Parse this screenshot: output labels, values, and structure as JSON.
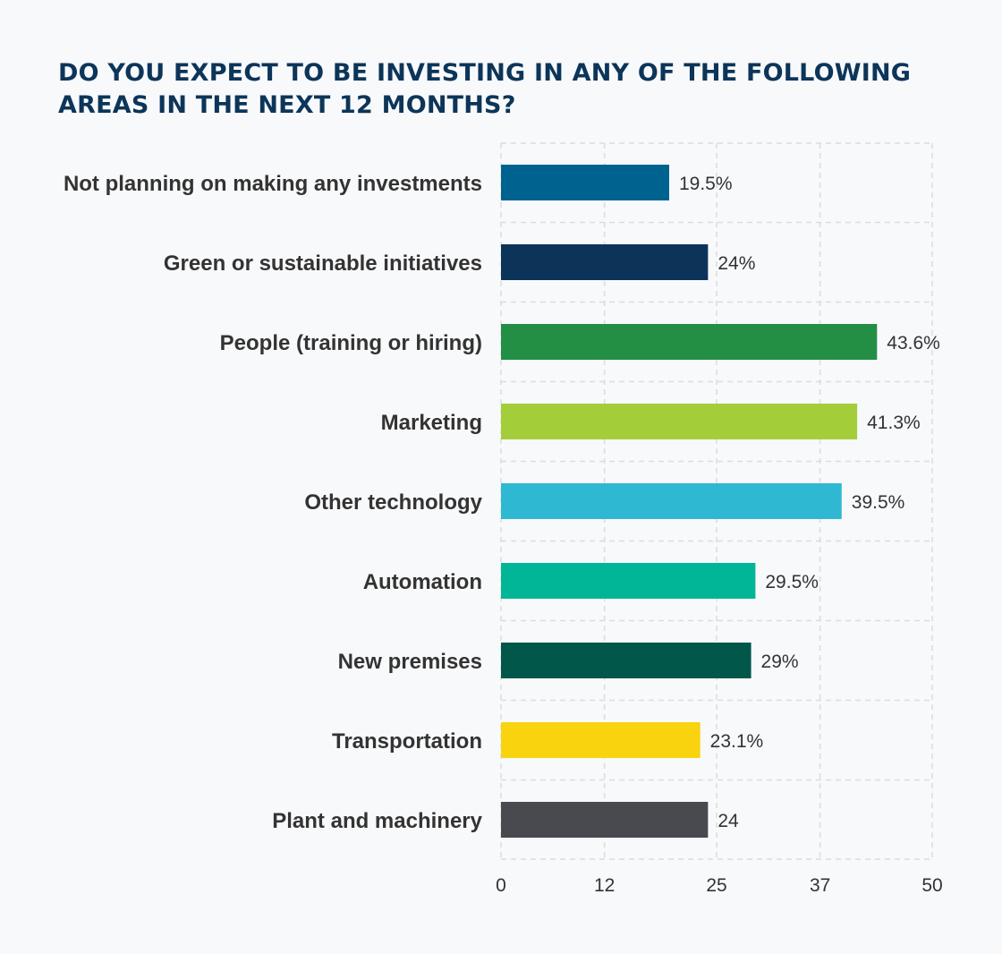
{
  "chart_data": {
    "type": "bar",
    "orientation": "horizontal",
    "title": "DO YOU EXPECT TO BE INVESTING IN ANY OF THE FOLLOWING AREAS IN THE NEXT 12 MONTHS?",
    "categories": [
      "Not planning on making any investments",
      "Green or sustainable initiatives",
      "People (training or hiring)",
      "Marketing",
      "Other technology",
      "Automation",
      "New premises",
      "Transportation",
      "Plant and machinery"
    ],
    "values": [
      19.5,
      24,
      43.6,
      41.3,
      39.5,
      29.5,
      29,
      23.1,
      24
    ],
    "value_labels": [
      "19.5%",
      "24%",
      "43.6%",
      "41.3%",
      "39.5%",
      "29.5%",
      "29%",
      "23.1%",
      "24"
    ],
    "colors": [
      "#00628f",
      "#0b3458",
      "#238f45",
      "#a4ce39",
      "#2fb8d1",
      "#00b696",
      "#00574a",
      "#fad30f",
      "#484a50"
    ],
    "xlim": [
      0,
      50
    ],
    "xticks": [
      0,
      12,
      25,
      37,
      50
    ],
    "grid": true,
    "xlabel": "",
    "ylabel": ""
  }
}
